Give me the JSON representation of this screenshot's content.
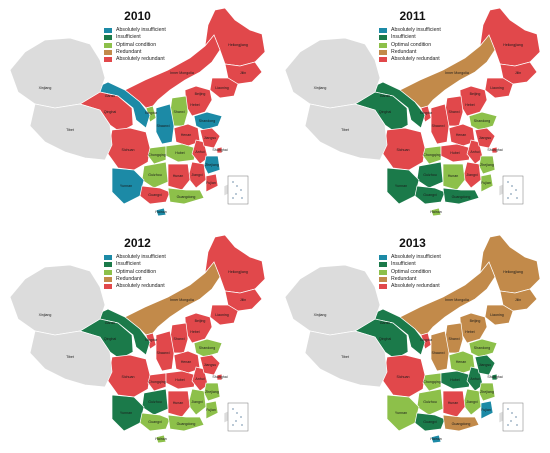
{
  "legend": [
    {
      "key": "AI",
      "label": "Absolutely insufficient",
      "color": "#1c8aa6"
    },
    {
      "key": "I",
      "label": "Insufficient",
      "color": "#1b7a4a"
    },
    {
      "key": "O",
      "label": "Optimal condition",
      "color": "#8dc04a"
    },
    {
      "key": "R",
      "label": "Redundant",
      "color": "#c28a4a"
    },
    {
      "key": "AR",
      "label": "Absolutely redundant",
      "color": "#e1484b"
    }
  ],
  "colors": {
    "neutral": "#dcdcdc",
    "border": "#ffffff"
  },
  "provinces": [
    "Heilongjiang",
    "Jilin",
    "Liaoning",
    "Inner Mongolia",
    "Beijing",
    "Tianjin",
    "Hebei",
    "Shanxi",
    "Shandong",
    "Henan",
    "Shaanxi",
    "Ningxia",
    "Gansu",
    "Qinghai",
    "Sichuan",
    "Chongqing",
    "Hubei",
    "Anhui",
    "Jiangsu",
    "Shanghai",
    "Zhejiang",
    "Jiangxi",
    "Hunan",
    "Guizhou",
    "Yunnan",
    "Guangxi",
    "Guangdong",
    "Fujian",
    "Hainan",
    "Xinjiang",
    "Tibet"
  ],
  "labels": {
    "Heilongjiang": "Heilongjiang",
    "Jilin": "Jilin",
    "Liaoning": "Liaoning",
    "Inner Mongolia": "Inner Mongolia",
    "Beijing": "Beijing",
    "Hebei": "Hebei",
    "Shanxi": "Shanxi",
    "Shandong": "Shandong",
    "Henan": "Henan",
    "Shaanxi": "Shaanxi",
    "Ningxia": "Ningxia",
    "Gansu": "Gansu",
    "Qinghai": "Qinghai",
    "Sichuan": "Sichuan",
    "Chongqing": "Chongqing",
    "Hubei": "Hubei",
    "Anhui": "Anhui",
    "Jiangsu": "Jiangsu",
    "Shanghai": "Shanghai",
    "Zhejiang": "Zhejiang",
    "Jiangxi": "Jiangxi",
    "Hunan": "Hunan",
    "Guizhou": "Guizhou",
    "Yunnan": "Yunnan",
    "Guangxi": "Guangxi",
    "Guangdong": "Guangdong",
    "Fujian": "Fujian",
    "Hainan": "Hainan",
    "Xinjiang": "Xinjiang",
    "Tibet": "Tibet"
  },
  "maps": [
    {
      "year": "2010",
      "status": {
        "Heilongjiang": "AR",
        "Jilin": "AR",
        "Liaoning": "AR",
        "Inner Mongolia": "AR",
        "Beijing": "AR",
        "Tianjin": "AR",
        "Hebei": "AR",
        "Shanxi": "O",
        "Shandong": "AI",
        "Henan": "AR",
        "Shaanxi": "AI",
        "Ningxia": "O",
        "Gansu": "AI",
        "Qinghai": "AR",
        "Sichuan": "AR",
        "Chongqing": "O",
        "Hubei": "O",
        "Anhui": "AR",
        "Jiangsu": "AR",
        "Shanghai": "AR",
        "Zhejiang": "AI",
        "Jiangxi": "AR",
        "Hunan": "AR",
        "Guizhou": "O",
        "Yunnan": "AI",
        "Guangxi": "AR",
        "Guangdong": "O",
        "Fujian": "AR",
        "Hainan": "AI"
      }
    },
    {
      "year": "2011",
      "status": {
        "Heilongjiang": "AR",
        "Jilin": "AR",
        "Liaoning": "AR",
        "Inner Mongolia": "R",
        "Beijing": "AR",
        "Tianjin": "AR",
        "Hebei": "AR",
        "Shanxi": "AR",
        "Shandong": "O",
        "Henan": "AR",
        "Shaanxi": "AR",
        "Ningxia": "AR",
        "Gansu": "I",
        "Qinghai": "I",
        "Sichuan": "AR",
        "Chongqing": "O",
        "Hubei": "AR",
        "Anhui": "AR",
        "Jiangsu": "AR",
        "Shanghai": "AR",
        "Zhejiang": "O",
        "Jiangxi": "AR",
        "Hunan": "O",
        "Guizhou": "I",
        "Yunnan": "I",
        "Guangxi": "I",
        "Guangdong": "I",
        "Fujian": "O",
        "Hainan": "O"
      }
    },
    {
      "year": "2012",
      "status": {
        "Heilongjiang": "AR",
        "Jilin": "AR",
        "Liaoning": "AR",
        "Inner Mongolia": "R",
        "Beijing": "AR",
        "Tianjin": "AR",
        "Hebei": "AR",
        "Shanxi": "AR",
        "Shandong": "O",
        "Henan": "AR",
        "Shaanxi": "AR",
        "Ningxia": "AR",
        "Gansu": "I",
        "Qinghai": "I",
        "Sichuan": "AR",
        "Chongqing": "AR",
        "Hubei": "AR",
        "Anhui": "AR",
        "Jiangsu": "AR",
        "Shanghai": "AR",
        "Zhejiang": "O",
        "Jiangxi": "O",
        "Hunan": "AR",
        "Guizhou": "I",
        "Yunnan": "I",
        "Guangxi": "O",
        "Guangdong": "O",
        "Fujian": "O",
        "Hainan": "O"
      }
    },
    {
      "year": "2013",
      "status": {
        "Heilongjiang": "R",
        "Jilin": "R",
        "Liaoning": "R",
        "Inner Mongolia": "R",
        "Beijing": "R",
        "Tianjin": "R",
        "Hebei": "R",
        "Shanxi": "R",
        "Shandong": "O",
        "Henan": "O",
        "Shaanxi": "R",
        "Ningxia": "AR",
        "Gansu": "I",
        "Qinghai": "I",
        "Sichuan": "AR",
        "Chongqing": "O",
        "Hubei": "I",
        "Anhui": "I",
        "Jiangsu": "I",
        "Shanghai": "I",
        "Zhejiang": "O",
        "Jiangxi": "O",
        "Hunan": "AR",
        "Guizhou": "O",
        "Yunnan": "O",
        "Guangxi": "I",
        "Guangdong": "R",
        "Fujian": "AI",
        "Hainan": "AI"
      }
    }
  ]
}
